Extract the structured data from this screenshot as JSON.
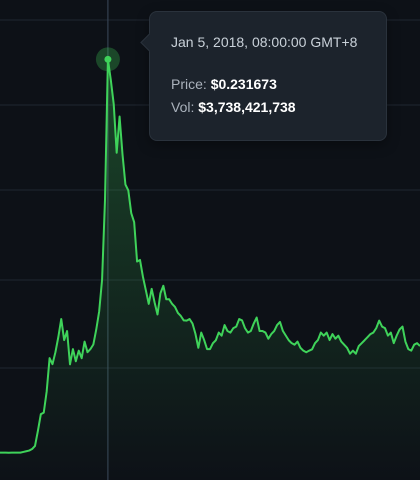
{
  "tooltip": {
    "date": "Jan 5, 2018, 08:00:00 GMT+8",
    "price_label": "Price: ",
    "price_value": "$0.231673",
    "vol_label": "Vol: ",
    "vol_value": "$3,738,421,738"
  },
  "colors": {
    "background": "#0d1117",
    "gridline": "#1f2630",
    "line": "#3fd35a",
    "crosshair": "#3b4a5c",
    "tooltip_bg": "#1c232c"
  },
  "chart_data": {
    "type": "area",
    "title": "",
    "xlabel": "",
    "ylabel": "",
    "ylim": [
      0,
      0.26
    ],
    "grid": true,
    "highlight_index": 37,
    "series": [
      {
        "values": [
          0.0014,
          0.0014,
          0.0014,
          0.0013,
          0.0014,
          0.0014,
          0.0014,
          0.0014,
          0.0018,
          0.0022,
          0.0026,
          0.0035,
          0.0053,
          0.0142,
          0.0239,
          0.0248,
          0.0372,
          0.0567,
          0.0532,
          0.0602,
          0.0691,
          0.0796,
          0.0673,
          0.0726,
          0.0531,
          0.062,
          0.0549,
          0.0611,
          0.0567,
          0.0664,
          0.0602,
          0.062,
          0.0647,
          0.0735,
          0.0841,
          0.1027,
          0.1496,
          0.2317,
          0.2195,
          0.2053,
          0.177,
          0.1982,
          0.1761,
          0.1584,
          0.1549,
          0.1416,
          0.1363,
          0.1133,
          0.1142,
          0.1044,
          0.0965,
          0.0885,
          0.0973,
          0.0894,
          0.0823,
          0.0947,
          0.0991,
          0.0912,
          0.0912,
          0.0885,
          0.0867,
          0.0832,
          0.0814,
          0.0788,
          0.0787,
          0.0796,
          0.077,
          0.071,
          0.0628,
          0.0717,
          0.0673,
          0.062,
          0.062,
          0.0655,
          0.0672,
          0.0717,
          0.0699,
          0.0761,
          0.0726,
          0.0717,
          0.0743,
          0.0752,
          0.0796,
          0.0788,
          0.0743,
          0.0717,
          0.0726,
          0.077,
          0.0805,
          0.0726,
          0.0726,
          0.0717,
          0.0681,
          0.0708,
          0.0726,
          0.0761,
          0.0779,
          0.0726,
          0.0699,
          0.0672,
          0.0655,
          0.0646,
          0.0664,
          0.0628,
          0.0611,
          0.0602,
          0.0611,
          0.0619,
          0.0655,
          0.0673,
          0.0717,
          0.0699,
          0.0717,
          0.0673,
          0.0708,
          0.0681,
          0.0699,
          0.0664,
          0.0646,
          0.0628,
          0.0593,
          0.0611,
          0.0593,
          0.0638,
          0.0655,
          0.0672,
          0.069,
          0.0708,
          0.0717,
          0.0743,
          0.0787,
          0.0752,
          0.0743,
          0.0699,
          0.0717,
          0.0655,
          0.0699,
          0.0735,
          0.0752,
          0.0664,
          0.062,
          0.0611,
          0.0646,
          0.0655,
          0.0638
        ]
      }
    ]
  }
}
